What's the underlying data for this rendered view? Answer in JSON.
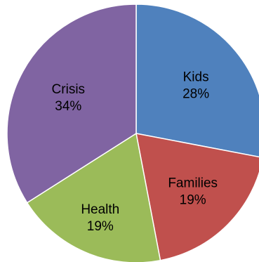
{
  "chart_data": {
    "type": "pie",
    "slices": [
      {
        "label": "Kids",
        "value": 28,
        "value_label": "28%",
        "color": "#4F81BD"
      },
      {
        "label": "Families",
        "value": 19,
        "value_label": "19%",
        "color": "#C0504D"
      },
      {
        "label": "Health",
        "value": 19,
        "value_label": "19%",
        "color": "#9BBB59"
      },
      {
        "label": "Crisis",
        "value": 34,
        "value_label": "34%",
        "color": "#8064A2"
      }
    ],
    "start_angle": "12 o'clock",
    "direction": "clockwise",
    "data_labels": "inside",
    "legend": "none"
  }
}
